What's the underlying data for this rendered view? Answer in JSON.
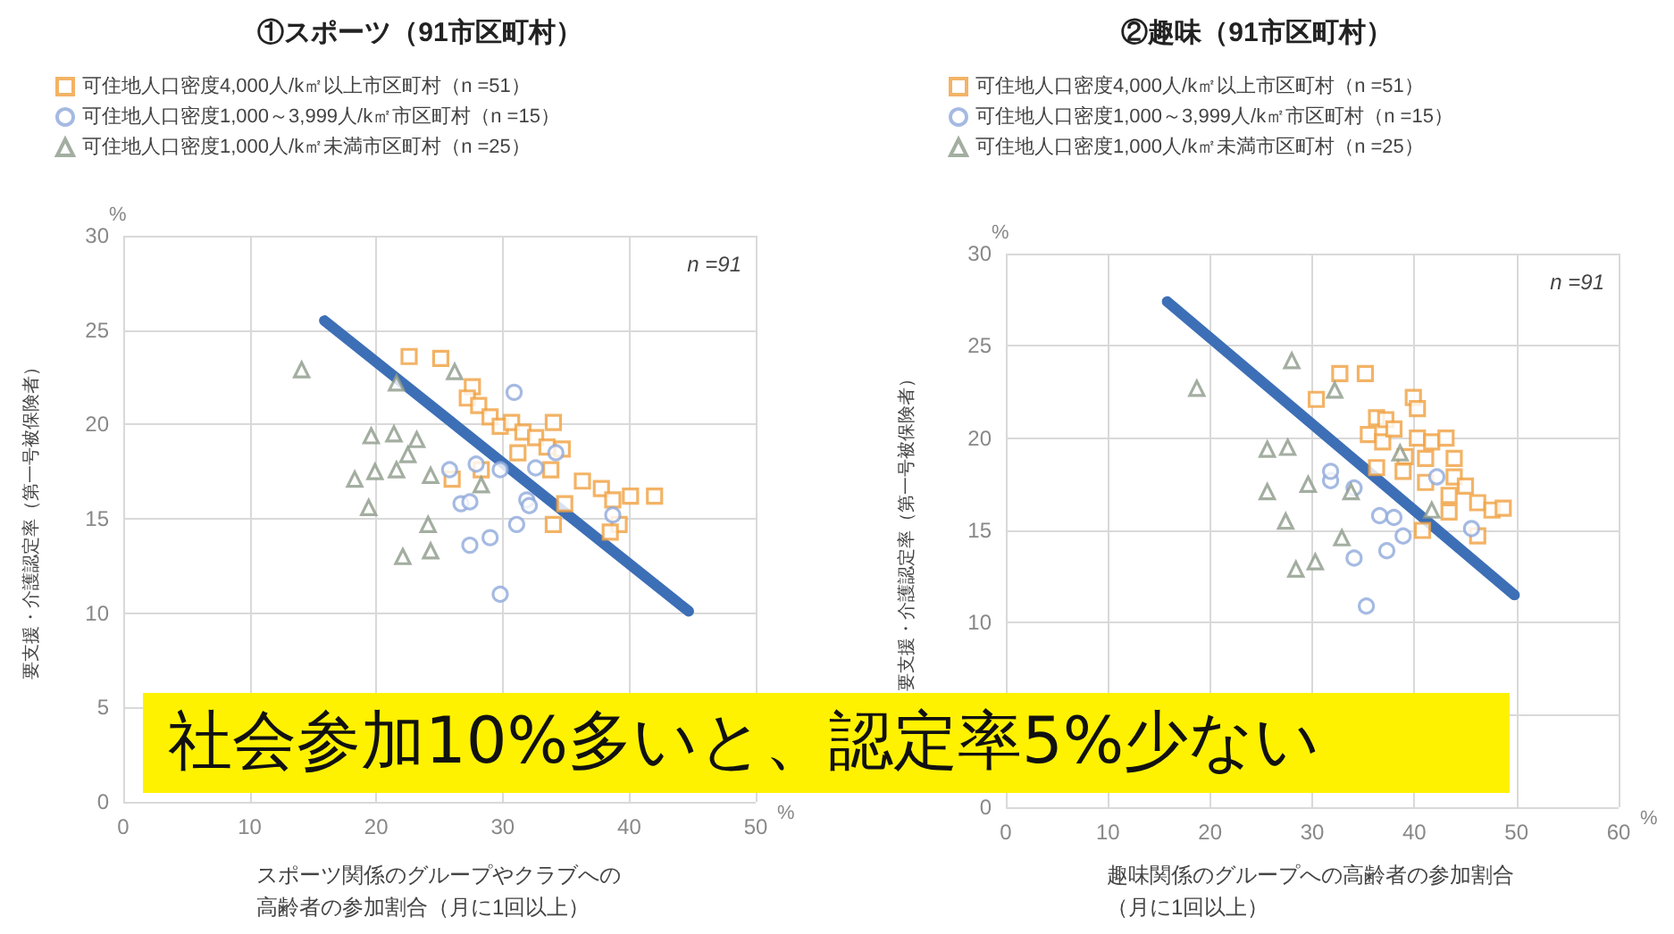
{
  "chart_data": [
    {
      "type": "scatter",
      "title": "①スポーツ（91市区町村）",
      "xlabel": "スポーツ関係のグループやクラブへの高齢者の参加割合（月に1回以上）",
      "ylabel": "要支援・介護認定率（第一号被保険者）",
      "xlim": [
        0,
        50
      ],
      "xticks": [
        0,
        10,
        20,
        30,
        40,
        50
      ],
      "ylim": [
        0,
        30
      ],
      "yticks": [
        0,
        5,
        10,
        15,
        20,
        25,
        30
      ],
      "grid": true,
      "legend": "top left",
      "annotations": [
        "n =91",
        "%",
        "%",
        "社会参加10%多いと、認定率5%少ない"
      ],
      "series": [
        {
          "name": "可住地人口密度4,000人/k㎡以上市区町村（n =51）",
          "color": "#f0a040",
          "marker": "square",
          "x": [
            22.6,
            25.1,
            27.6,
            27.2,
            28.1,
            29.0,
            29.8,
            30.7,
            31.6,
            32.6,
            34.0,
            31.2,
            33.5,
            34.7,
            33.8,
            36.3,
            37.8,
            38.7,
            40.1,
            42.0,
            34.9,
            34.0,
            39.2,
            38.5,
            26.0,
            28.3
          ],
          "values": [
            23.6,
            23.5,
            22.0,
            21.4,
            21.0,
            20.4,
            19.9,
            20.1,
            19.6,
            19.3,
            20.1,
            18.5,
            18.8,
            18.7,
            17.6,
            17.0,
            16.6,
            16.0,
            16.2,
            16.2,
            15.8,
            14.7,
            14.7,
            14.3,
            17.1,
            17.6
          ]
        },
        {
          "name": "可住地人口密度1,000～3,999人/k㎡市区町村（n =15）",
          "color": "#8ea9db",
          "marker": "circle",
          "x": [
            30.9,
            25.8,
            27.9,
            26.7,
            27.4,
            31.9,
            32.1,
            31.1,
            29.0,
            27.4,
            29.8,
            32.6,
            34.2,
            38.7,
            29.8
          ],
          "values": [
            21.7,
            17.6,
            17.9,
            15.8,
            15.9,
            16.0,
            15.7,
            14.7,
            14.0,
            13.6,
            11.0,
            17.7,
            18.5,
            15.2,
            17.6
          ]
        },
        {
          "name": "可住地人口密度1,000人/k㎡未満市区町村（n =25）",
          "color": "#8c9a8a",
          "marker": "triangle",
          "x": [
            14.1,
            26.2,
            19.6,
            21.4,
            23.2,
            22.5,
            18.3,
            19.9,
            21.6,
            24.3,
            28.3,
            19.4,
            24.1,
            22.1,
            24.3,
            21.6
          ],
          "values": [
            22.9,
            22.8,
            19.4,
            19.5,
            19.2,
            18.4,
            17.1,
            17.5,
            17.6,
            17.3,
            16.8,
            15.6,
            14.7,
            13.0,
            13.3,
            22.2
          ]
        },
        {
          "type": "line",
          "color": "#3d6fb6",
          "marker": "none",
          "line_style": "solid",
          "x": [
            15.9,
            44.7
          ],
          "values": [
            25.5,
            10.1
          ]
        }
      ]
    },
    {
      "type": "scatter",
      "title": "②趣味（91市区町村）",
      "xlabel": "趣味関係のグループへの高齢者の参加割合（月に1回以上）",
      "ylabel": "要支援・介護認定率（第一号被保険者）",
      "xlim": [
        0,
        60
      ],
      "xticks": [
        0,
        10,
        20,
        30,
        40,
        50,
        60
      ],
      "ylim": [
        0,
        30
      ],
      "yticks": [
        0,
        {
          "value": 5,
          "label": null
        },
        10,
        15,
        20,
        25,
        30
      ],
      "grid": true,
      "legend": "top left",
      "annotations": [
        "n =91",
        "%",
        "%"
      ],
      "series": [
        {
          "name": "可住地人口密度4,000人/k㎡以上市区町村（n =51）",
          "color": "#f0a040",
          "marker": "square",
          "x": [
            30.4,
            32.7,
            35.2,
            39.9,
            40.3,
            36.3,
            37.2,
            35.5,
            36.9,
            38.0,
            40.3,
            41.7,
            43.1,
            39.1,
            41.1,
            43.9,
            38.9,
            41.1,
            43.9,
            45.0,
            43.4,
            43.4,
            46.2,
            47.6,
            48.7,
            40.8,
            46.2,
            36.3
          ],
          "values": [
            22.1,
            23.5,
            23.5,
            22.2,
            21.6,
            21.1,
            21.0,
            20.2,
            19.8,
            20.5,
            20.0,
            19.8,
            20.0,
            19.0,
            18.9,
            18.9,
            18.2,
            17.6,
            17.9,
            17.4,
            16.9,
            16.0,
            16.5,
            16.1,
            16.2,
            15.0,
            14.7,
            18.4
          ]
        },
        {
          "name": "可住地人口密度1,000～3,999人/k㎡市区町村（n =15）",
          "color": "#8ea9db",
          "marker": "circle",
          "x": [
            31.8,
            34.1,
            36.6,
            38.0,
            38.9,
            37.3,
            34.1,
            35.3,
            42.2,
            45.6,
            31.8
          ],
          "values": [
            17.7,
            17.3,
            15.8,
            15.7,
            14.7,
            13.9,
            13.5,
            10.9,
            17.9,
            15.1,
            18.2
          ]
        },
        {
          "name": "可住地人口密度1,000人/k㎡未満市区町村（n =25）",
          "color": "#8c9a8a",
          "marker": "triangle",
          "x": [
            18.7,
            28.0,
            32.2,
            25.6,
            27.6,
            25.6,
            29.6,
            27.4,
            28.4,
            30.3,
            32.9,
            33.8,
            38.6,
            41.7
          ],
          "values": [
            22.7,
            24.2,
            22.6,
            19.4,
            19.5,
            17.1,
            17.5,
            15.5,
            12.9,
            13.3,
            14.6,
            17.1,
            19.2,
            16.1
          ]
        },
        {
          "type": "line",
          "color": "#3d6fb6",
          "marker": "none",
          "line_style": "solid",
          "x": [
            15.8,
            49.8
          ],
          "values": [
            27.4,
            11.5
          ]
        }
      ]
    }
  ]
}
